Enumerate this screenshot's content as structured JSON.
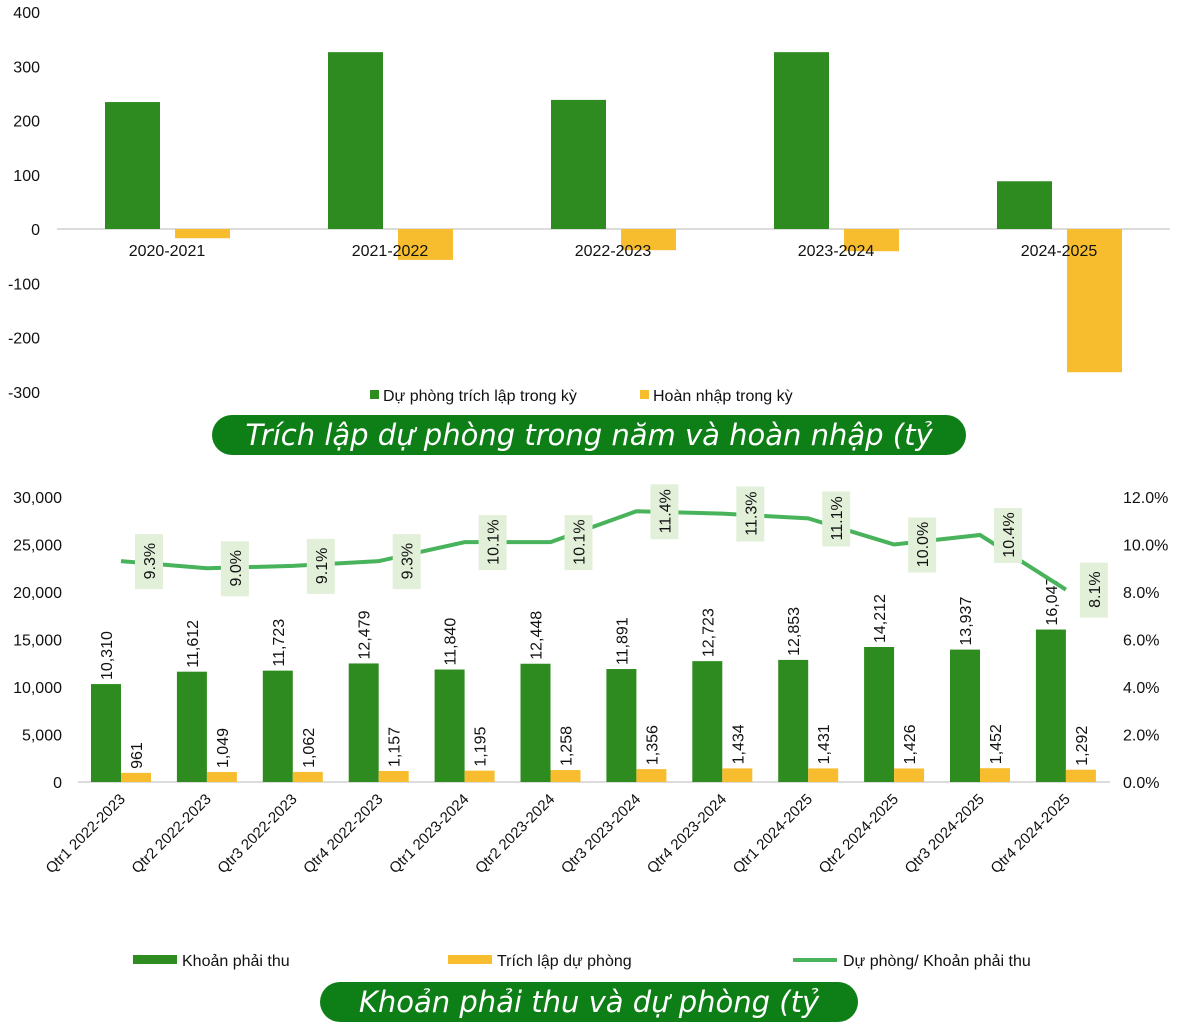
{
  "colors": {
    "green": "#2e8b1f",
    "yellow": "#f7bd2e",
    "line": "#48b35a",
    "label_bg": "#e2f0d9",
    "title_bg": "#0e7e16"
  },
  "chart_data": [
    {
      "type": "bar",
      "title": "Trích lập dự phòng trong năm và hoàn nhập (tỷ đồng)",
      "categories": [
        "2020-2021",
        "2021-2022",
        "2022-2023",
        "2023-2024",
        "2024-2025"
      ],
      "series": [
        {
          "name": "Dự phòng trích lập trong kỳ",
          "values": [
            234,
            326,
            238,
            326,
            88
          ]
        },
        {
          "name": "Hoàn nhập trong kỳ",
          "values": [
            -17,
            -57,
            -39,
            -41,
            -264
          ]
        }
      ],
      "ylim": [
        -300,
        400
      ],
      "yticks": [
        "400",
        "300",
        "200",
        "100",
        "0",
        "-100",
        "-200",
        "-300"
      ],
      "ytick_values": [
        400,
        300,
        200,
        100,
        0,
        -100,
        -200,
        -300
      ],
      "legend": "bottom"
    },
    {
      "type": "bar",
      "title": "Khoản phải thu và dự phòng (tỷ đồng)",
      "categories": [
        "Qtr1 2022-2023",
        "Qtr2 2022-2023",
        "Qtr3 2022-2023",
        "Qtr4 2022-2023",
        "Qtr1 2023-2024",
        "Qtr2 2023-2024",
        "Qtr3 2023-2024",
        "Qtr4 2023-2024",
        "Qtr1 2024-2025",
        "Qtr2 2024-2025",
        "Qtr3 2024-2025",
        "Qtr4 2024-2025"
      ],
      "series": [
        {
          "name": "Khoản phải thu",
          "values": [
            10310,
            11612,
            11723,
            12479,
            11840,
            12448,
            11891,
            12723,
            12853,
            14212,
            13937,
            16047
          ],
          "labels": [
            "10,310",
            "11,612",
            "11,723",
            "12,479",
            "11,840",
            "12,448",
            "11,891",
            "12,723",
            "12,853",
            "14,212",
            "13,937",
            "16,047"
          ]
        },
        {
          "name": "Trích lập dự phòng",
          "values": [
            961,
            1049,
            1062,
            1157,
            1195,
            1258,
            1356,
            1434,
            1431,
            1426,
            1452,
            1292
          ],
          "labels": [
            "961",
            "1,049",
            "1,062",
            "1,157",
            "1,195",
            "1,258",
            "1,356",
            "1,434",
            "1,431",
            "1,426",
            "1,452",
            "1,292"
          ]
        },
        {
          "name": "Dự phòng/ Khoản phải thu",
          "type": "line",
          "axis": "right",
          "values": [
            9.3,
            9.0,
            9.1,
            9.3,
            10.1,
            10.1,
            11.4,
            11.3,
            11.1,
            10.0,
            10.4,
            8.1
          ],
          "labels": [
            "9.3%",
            "9.0%",
            "9.1%",
            "9.3%",
            "10.1%",
            "10.1%",
            "11.4%",
            "11.3%",
            "11.1%",
            "10.0%",
            "10.4%",
            "8.1%"
          ]
        }
      ],
      "ylim": [
        0,
        30000
      ],
      "yticks": [
        "30,000",
        "25,000",
        "20,000",
        "15,000",
        "10,000",
        "5,000",
        "0"
      ],
      "ytick_values": [
        30000,
        25000,
        20000,
        15000,
        10000,
        5000,
        0
      ],
      "y2lim": [
        0,
        12
      ],
      "y2ticks": [
        "12.0%",
        "10.0%",
        "8.0%",
        "6.0%",
        "4.0%",
        "2.0%",
        "0.0%"
      ],
      "y2tick_values": [
        12,
        10,
        8,
        6,
        4,
        2,
        0
      ],
      "legend": "bottom"
    }
  ]
}
